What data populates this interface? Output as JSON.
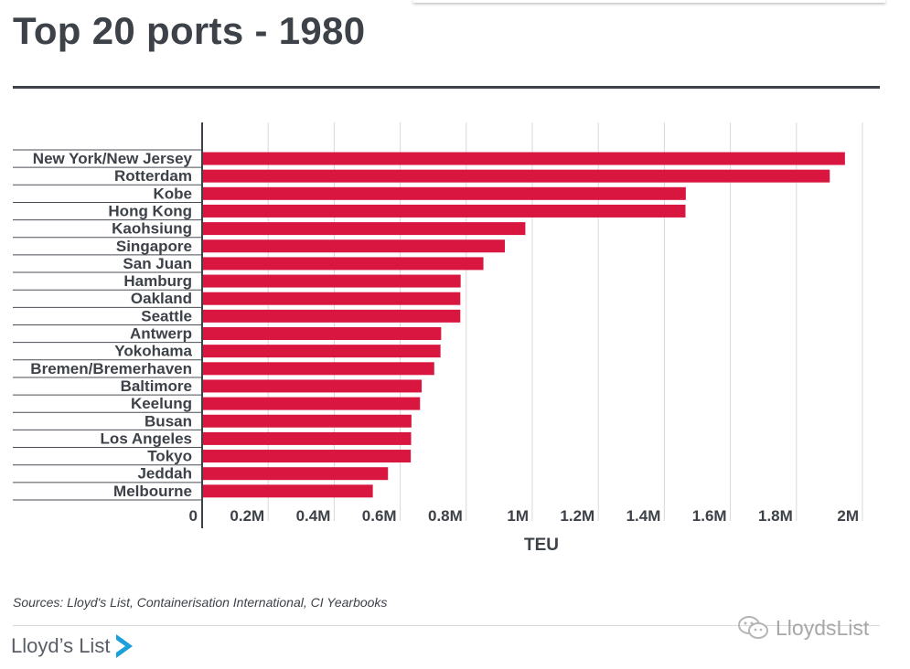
{
  "title": "Top 20 ports - 1980",
  "source": "Sources: Lloyd's List, Containerisation International, CI Yearbooks",
  "logo": {
    "text": "Lloyd’s List",
    "icon": "play-arrow-icon"
  },
  "watermark": {
    "text": "LloydsList",
    "icon": "wechat-icon"
  },
  "colors": {
    "bar": "#d8163f",
    "text": "#3d4148",
    "grid": "#d9d9d9",
    "axis": "#3d4148"
  },
  "chart_data": {
    "type": "bar",
    "orientation": "horizontal",
    "xlabel": "TEU",
    "ylabel": "",
    "xlim": [
      0,
      2000000
    ],
    "xticks": [
      {
        "value": 0,
        "label": "0"
      },
      {
        "value": 200000,
        "label": "0.2M"
      },
      {
        "value": 400000,
        "label": "0.4M"
      },
      {
        "value": 600000,
        "label": "0.6M"
      },
      {
        "value": 800000,
        "label": "0.8M"
      },
      {
        "value": 1000000,
        "label": "1M"
      },
      {
        "value": 1200000,
        "label": "1.2M"
      },
      {
        "value": 1400000,
        "label": "1.4M"
      },
      {
        "value": 1600000,
        "label": "1.6M"
      },
      {
        "value": 1800000,
        "label": "1.8M"
      },
      {
        "value": 2000000,
        "label": "2M"
      }
    ],
    "grid": true,
    "categories": [
      "New York/New Jersey",
      "Rotterdam",
      "Kobe",
      "Hong Kong",
      "Kaohsiung",
      "Singapore",
      "San Juan",
      "Hamburg",
      "Oakland",
      "Seattle",
      "Antwerp",
      "Yokohama",
      "Bremen/Bremerhaven",
      "Baltimore",
      "Keelung",
      "Busan",
      "Los Angeles",
      "Tokyo",
      "Jeddah",
      "Melbourne"
    ],
    "values": [
      1947000,
      1901000,
      1465000,
      1464000,
      979000,
      917000,
      852000,
      783000,
      782000,
      782000,
      724000,
      722000,
      703000,
      665000,
      660000,
      634000,
      633000,
      632000,
      563000,
      517000
    ]
  }
}
